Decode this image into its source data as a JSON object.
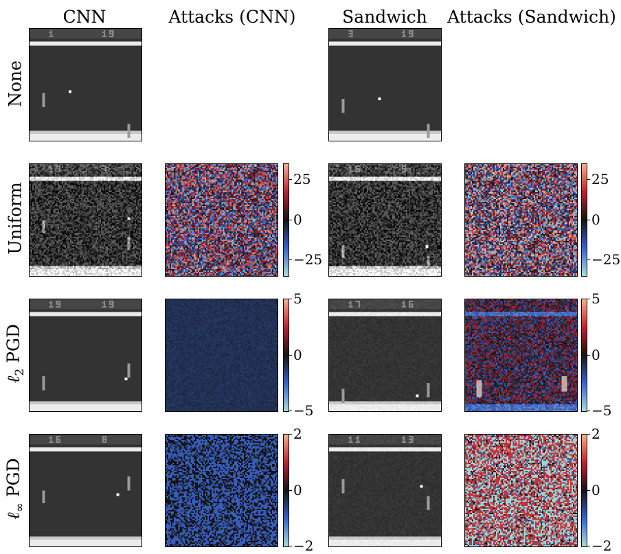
{
  "columns": [
    "CNN",
    "Attacks (CNN)",
    "Sandwich",
    "Attacks (Sandwich)"
  ],
  "rows": [
    {
      "label": "None",
      "cnn_score": [
        "1",
        "19"
      ],
      "sandwich_score": [
        "3",
        "19"
      ]
    },
    {
      "label": "Uniform",
      "cnn_score": [
        "17",
        "7"
      ],
      "sandwich_score": [
        "15",
        "9"
      ],
      "cnn_colorbar": [
        "25",
        "0",
        "−25"
      ],
      "sandwich_colorbar": [
        "25",
        "0",
        "−25"
      ]
    },
    {
      "label_main": "ℓ",
      "label_sub": "2",
      "label_rest": " PGD",
      "cnn_score": [
        "19",
        "19"
      ],
      "sandwich_score": [
        "17",
        "16"
      ],
      "cnn_colorbar": [
        "5",
        "0",
        "−5"
      ],
      "sandwich_colorbar": [
        "5",
        "0",
        "−5"
      ]
    },
    {
      "label_main": "ℓ",
      "label_sub": "∞",
      "label_rest": " PGD",
      "cnn_score": [
        "16",
        "8"
      ],
      "sandwich_score": [
        "11",
        "13"
      ],
      "cnn_colorbar": [
        "2",
        "0",
        "−2"
      ],
      "sandwich_colorbar": [
        "2",
        "0",
        "−2"
      ]
    }
  ],
  "colormap": {
    "low": "#a8ddd6",
    "mid_low": "#3a63c8",
    "mid": "#141414",
    "mid_high": "#b8242f",
    "high": "#f6b08a"
  },
  "game_colors": {
    "background": "#333333",
    "bar": "#ececec",
    "paddle": "#9a9a9a",
    "ball": "#ffffff",
    "score": "#8a8a8a"
  }
}
